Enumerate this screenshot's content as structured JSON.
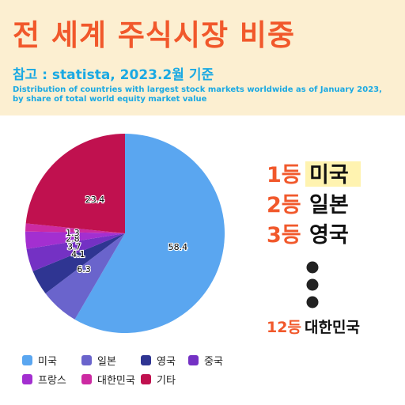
{
  "header": {
    "title": "전 세계 주식시장 비중",
    "subtitle": "참고 : statista, 2023.2월 기준",
    "description": "Distribution of countries with largest stock markets worldwide as of January 2023, by share of total world equity market value"
  },
  "ranking": [
    {
      "rank": "1등",
      "country": "미국",
      "highlight": true
    },
    {
      "rank": "2등",
      "country": "일본",
      "highlight": false
    },
    {
      "rank": "3등",
      "country": "영국",
      "highlight": false
    },
    {
      "rank": "12등",
      "country": "대한민국",
      "highlight": false
    }
  ],
  "colors": {
    "title": "#f1582b",
    "subtitle": "#1aa9e3",
    "header_bg": "#fcefd1",
    "rank_accent": "#f1582b",
    "highlight": "#fff3b0"
  },
  "chart_data": {
    "type": "pie",
    "categories": [
      "미국",
      "일본",
      "영국",
      "중국",
      "프랑스",
      "대한민국",
      "기타"
    ],
    "values": [
      58.4,
      6.3,
      4.1,
      3.7,
      2.8,
      1.3,
      23.4
    ],
    "colors": [
      "#5aa6f0",
      "#6a64cc",
      "#2f3592",
      "#7431c4",
      "#a32fd0",
      "#cc2aa2",
      "#c0114f"
    ],
    "data_labels": [
      "58.4",
      "6.3",
      "4.1",
      "3.7",
      "2.8",
      "1.3",
      "23.4"
    ],
    "legend": {
      "placement": "bottom-left",
      "items": [
        {
          "label": "미국",
          "color": "#5aa6f0"
        },
        {
          "label": "일본",
          "color": "#6a64cc"
        },
        {
          "label": "영국",
          "color": "#2f3592"
        },
        {
          "label": "중국",
          "color": "#7431c4"
        },
        {
          "label": "프랑스",
          "color": "#a32fd0"
        },
        {
          "label": "대한민국",
          "color": "#cc2aa2"
        },
        {
          "label": "기타",
          "color": "#c0114f"
        }
      ]
    }
  }
}
